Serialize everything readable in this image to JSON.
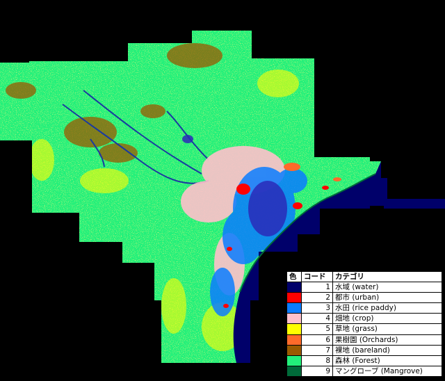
{
  "legend": {
    "headers": {
      "color": "色",
      "code": "コード",
      "category": "カテゴリ"
    },
    "rows": [
      {
        "color": "#00006a",
        "code": "1",
        "category": "水域 (water)"
      },
      {
        "color": "#ff0000",
        "code": "2",
        "category": "都市 (urban)"
      },
      {
        "color": "#0a7cff",
        "code": "3",
        "category": "水田 (rice paddy)"
      },
      {
        "color": "#ffc0cb",
        "code": "4",
        "category": "畑地 (crop)"
      },
      {
        "color": "#ffff00",
        "code": "5",
        "category": "草地 (grass)"
      },
      {
        "color": "#ff6a2a",
        "code": "6",
        "category": "果樹園 (Orchards)"
      },
      {
        "color": "#9a5a00",
        "code": "7",
        "category": "裸地 (bareland)"
      },
      {
        "color": "#22f07a",
        "code": "8",
        "category": "森林 (Forest)"
      },
      {
        "color": "#006a3a",
        "code": "9",
        "category": "マングローブ (Mangrove)"
      }
    ]
  }
}
